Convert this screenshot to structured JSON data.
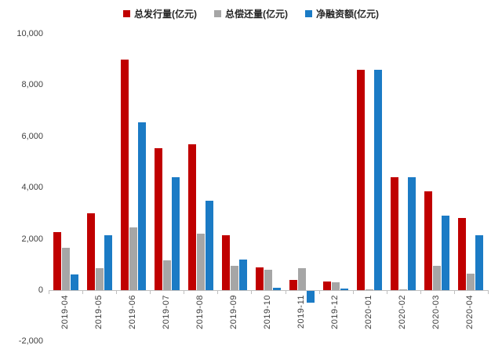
{
  "chart": {
    "legend": {
      "items": [
        {
          "label": "总发行量(亿元)",
          "color": "#c00000"
        },
        {
          "label": "总偿还量(亿元)",
          "color": "#a6a6a6"
        },
        {
          "label": "净融资额(亿元)",
          "color": "#1b7bc5"
        }
      ]
    }
  },
  "chart_data": {
    "type": "bar",
    "title": "",
    "xlabel": "",
    "ylabel": "",
    "categories": [
      "2019-04",
      "2019-05",
      "2019-06",
      "2019-07",
      "2019-08",
      "2019-09",
      "2019-10",
      "2019-11",
      "2019-12",
      "2020-01",
      "2020-02",
      "2020-03",
      "2020-04"
    ],
    "series": [
      {
        "name": "总发行量(亿元)",
        "color": "#c00000",
        "values": [
          2250,
          3000,
          9000,
          5550,
          5700,
          2150,
          900,
          400,
          350,
          8600,
          4400,
          3850,
          2800
        ]
      },
      {
        "name": "总偿还量(亿元)",
        "color": "#a6a6a6",
        "values": [
          1650,
          850,
          2450,
          1150,
          2200,
          950,
          800,
          850,
          300,
          30,
          30,
          950,
          650
        ]
      },
      {
        "name": "净融资额(亿元)",
        "color": "#1b7bc5",
        "values": [
          600,
          2150,
          6550,
          4400,
          3500,
          1200,
          100,
          -450,
          50,
          8600,
          4400,
          2900,
          2150
        ]
      }
    ],
    "ylim": [
      -2000,
      10000
    ],
    "ytick_step": 2000,
    "y_tick_values": [
      10000,
      8000,
      6000,
      4000,
      2000,
      0,
      -2000
    ],
    "y_tick_labels": [
      "10,000",
      "8,000",
      "6,000",
      "4,000",
      "2,000",
      "0",
      "-2,000"
    ],
    "grid": false,
    "legend_position": "top"
  },
  "axis_style": {
    "line_color": "#bfbfbf",
    "tick_label_color": "#3f3f3f"
  }
}
